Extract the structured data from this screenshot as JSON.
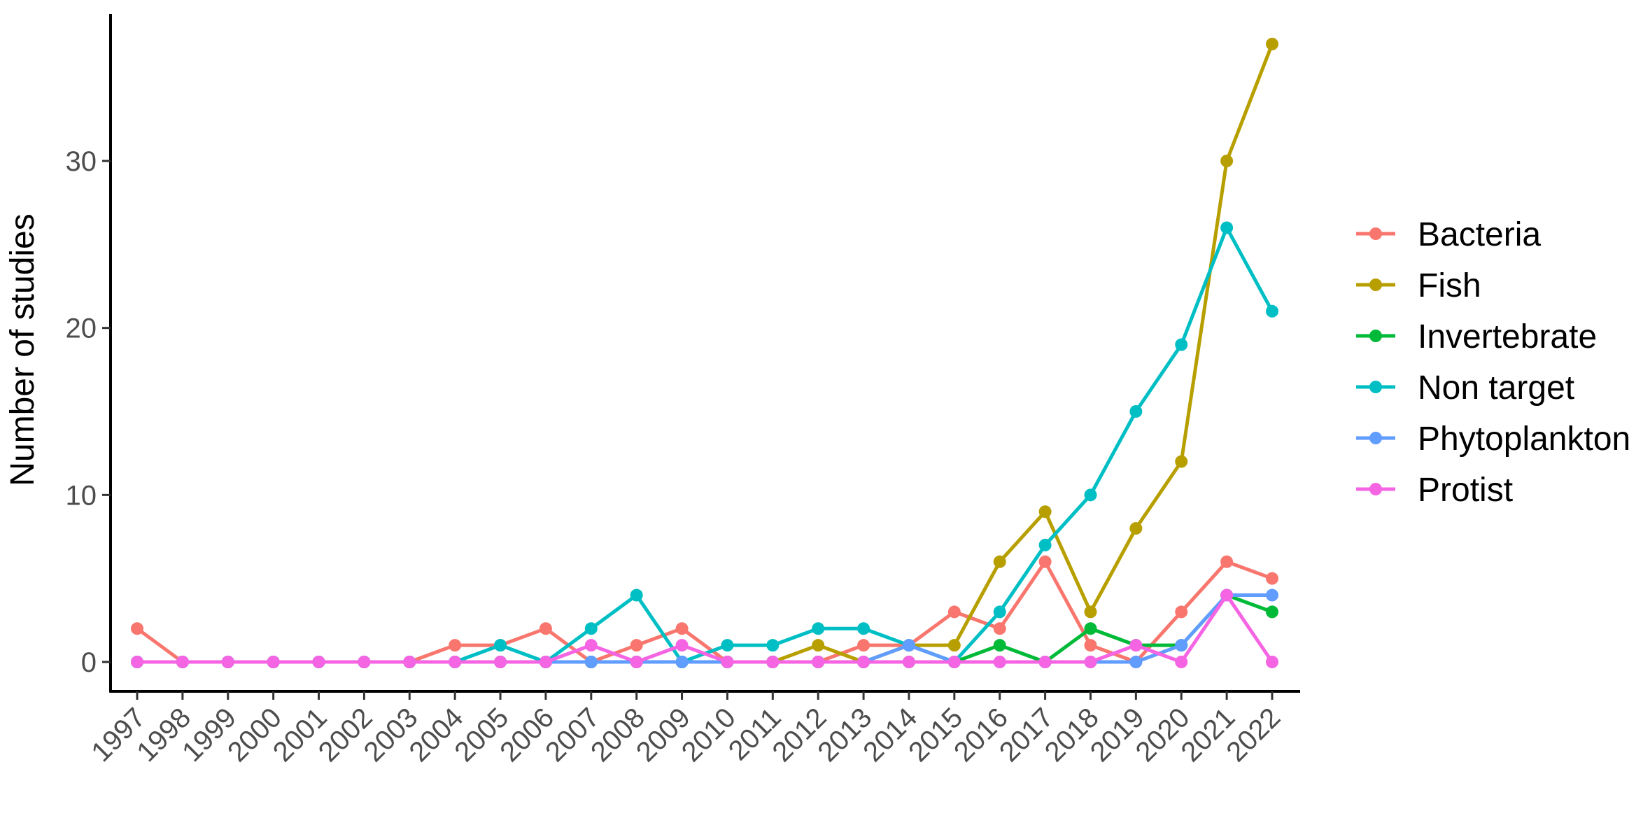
{
  "chart_data": {
    "type": "line",
    "title": "",
    "xlabel": "",
    "ylabel": "Number of studies",
    "ylim": [
      0,
      37
    ],
    "y_ticks": [
      0,
      10,
      20,
      30
    ],
    "grid": false,
    "legend_position": "right",
    "categories": [
      "1997",
      "1998",
      "1999",
      "2000",
      "2001",
      "2002",
      "2003",
      "2004",
      "2005",
      "2006",
      "2007",
      "2008",
      "2009",
      "2010",
      "2011",
      "2012",
      "2013",
      "2014",
      "2015",
      "2016",
      "2017",
      "2018",
      "2019",
      "2020",
      "2021",
      "2022"
    ],
    "series": [
      {
        "name": "Bacteria",
        "color": "#F8766D",
        "values": [
          2,
          0,
          0,
          0,
          0,
          0,
          0,
          1,
          1,
          2,
          0,
          1,
          2,
          0,
          0,
          0,
          1,
          1,
          3,
          2,
          6,
          1,
          0,
          3,
          6,
          5
        ]
      },
      {
        "name": "Fish",
        "color": "#B79F00",
        "values": [
          0,
          0,
          0,
          0,
          0,
          0,
          0,
          0,
          0,
          0,
          0,
          0,
          0,
          0,
          0,
          1,
          0,
          1,
          1,
          6,
          9,
          3,
          8,
          12,
          30,
          37
        ]
      },
      {
        "name": "Invertebrate",
        "color": "#00BA38",
        "values": [
          0,
          0,
          0,
          0,
          0,
          0,
          0,
          0,
          0,
          0,
          0,
          0,
          0,
          0,
          0,
          0,
          0,
          0,
          0,
          1,
          0,
          2,
          1,
          1,
          4,
          3
        ]
      },
      {
        "name": "Non target",
        "color": "#00BFC4",
        "values": [
          0,
          0,
          0,
          0,
          0,
          0,
          0,
          0,
          1,
          0,
          2,
          4,
          0,
          1,
          1,
          2,
          2,
          1,
          0,
          3,
          7,
          10,
          15,
          19,
          26,
          21
        ]
      },
      {
        "name": "Phytoplankton",
        "color": "#619CFF",
        "values": [
          0,
          0,
          0,
          0,
          0,
          0,
          0,
          0,
          0,
          0,
          0,
          0,
          0,
          0,
          0,
          0,
          0,
          1,
          0,
          0,
          0,
          0,
          0,
          1,
          4,
          4
        ]
      },
      {
        "name": "Protist",
        "color": "#F564E3",
        "values": [
          0,
          0,
          0,
          0,
          0,
          0,
          0,
          0,
          0,
          0,
          1,
          0,
          1,
          0,
          0,
          0,
          0,
          0,
          0,
          0,
          0,
          0,
          1,
          0,
          4,
          0
        ]
      }
    ]
  }
}
